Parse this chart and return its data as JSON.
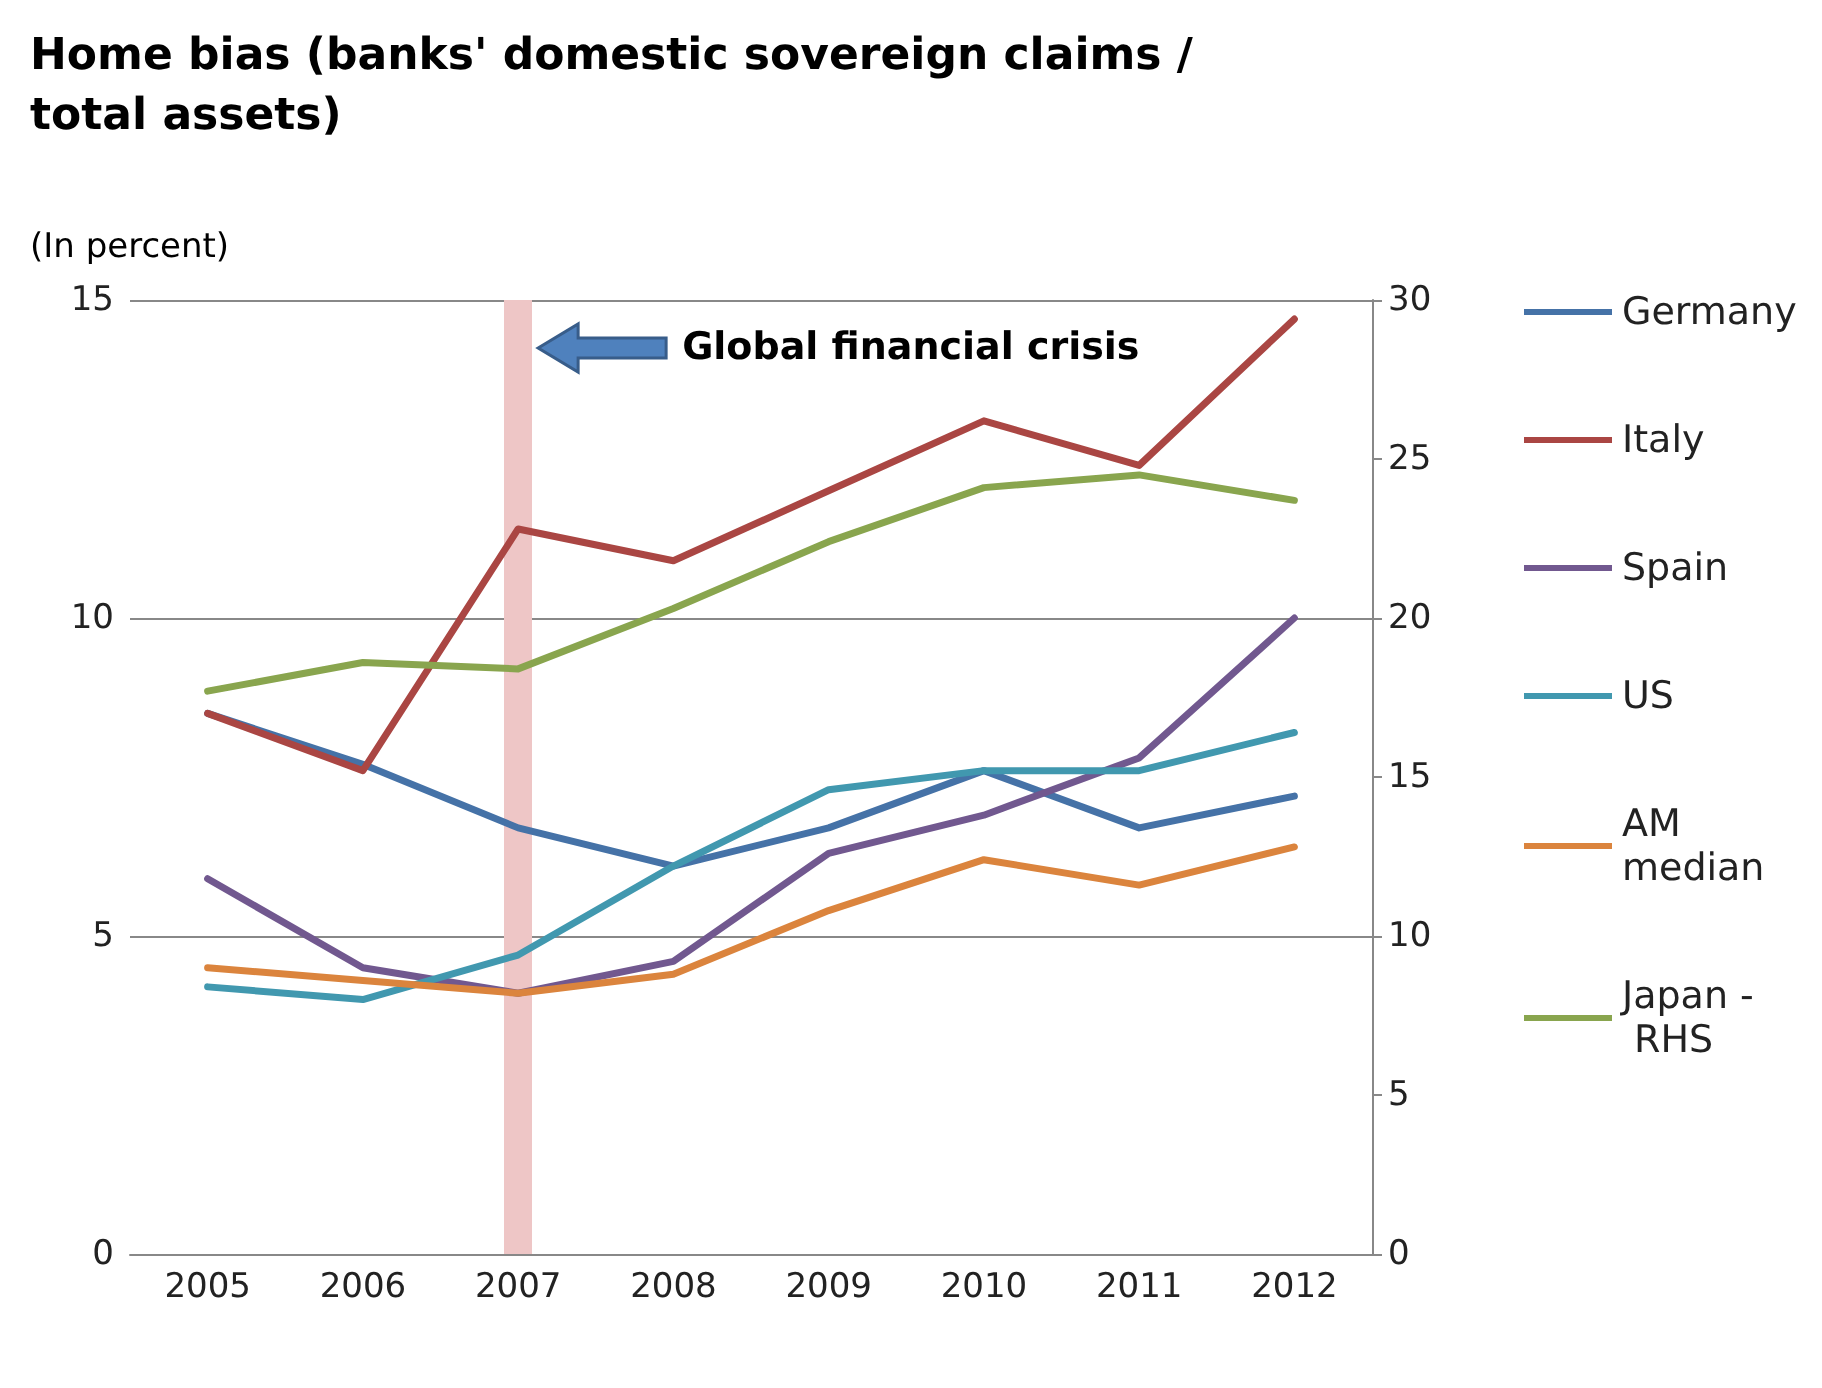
{
  "chart_data": {
    "type": "line",
    "title": "Home bias (banks' domestic sovereign claims / total assets)",
    "subtitle": "(In percent)",
    "categories": [
      "2005",
      "2006",
      "2007",
      "2008",
      "2009",
      "2010",
      "2011",
      "2012"
    ],
    "series": [
      {
        "name": "Germany",
        "color": "#4572a7",
        "values": [
          8.5,
          7.7,
          6.7,
          6.1,
          6.7,
          7.6,
          6.7,
          7.2
        ]
      },
      {
        "name": "Italy",
        "color": "#aa4643",
        "values": [
          8.5,
          7.6,
          11.4,
          10.9,
          12.0,
          13.1,
          12.4,
          14.7
        ]
      },
      {
        "name": "Spain",
        "color": "#71588f",
        "values": [
          5.9,
          4.5,
          4.1,
          4.6,
          6.3,
          6.9,
          7.8,
          10.0
        ]
      },
      {
        "name": "US",
        "color": "#4198af",
        "values": [
          4.2,
          4.0,
          4.7,
          6.1,
          7.3,
          7.6,
          7.6,
          8.2
        ]
      },
      {
        "name": "AM median",
        "color": "#db843d",
        "values": [
          4.5,
          4.3,
          4.1,
          4.4,
          5.4,
          6.2,
          5.8,
          6.4
        ]
      },
      {
        "name": "Japan - RHS",
        "color": "#89a54e",
        "axis": "y2",
        "values": [
          17.7,
          18.6,
          18.4,
          20.3,
          22.4,
          24.1,
          24.5,
          23.7
        ]
      }
    ],
    "ylim": [
      0,
      15
    ],
    "yticks": [
      0,
      5,
      10,
      15
    ],
    "y2lim": [
      0,
      30
    ],
    "y2ticks": [
      0,
      5,
      10,
      15,
      20,
      25,
      30
    ],
    "ref_lines": [
      {
        "axis": "x",
        "value": "2007",
        "color": "#eec6c6"
      }
    ],
    "annotations": [
      "Global financial crisis"
    ],
    "grid": "y",
    "legend": "right",
    "marker": "none",
    "line_style": "solid"
  }
}
